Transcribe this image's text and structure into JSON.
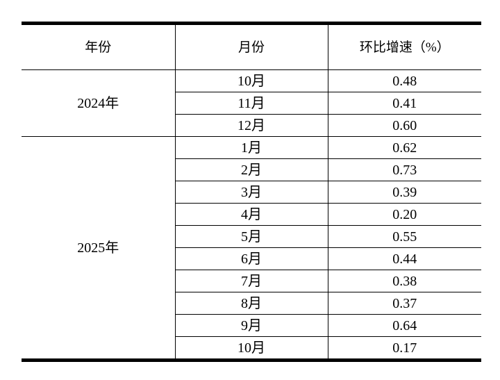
{
  "table": {
    "headers": {
      "year": "年份",
      "month": "月份",
      "growth": "环比增速（%）"
    },
    "groups": [
      {
        "year": "2024年",
        "rows": [
          {
            "month": "10月",
            "value": "0.48"
          },
          {
            "month": "11月",
            "value": "0.41"
          },
          {
            "month": "12月",
            "value": "0.60"
          }
        ]
      },
      {
        "year": "2025年",
        "rows": [
          {
            "month": "1月",
            "value": "0.62"
          },
          {
            "month": "2月",
            "value": "0.73"
          },
          {
            "month": "3月",
            "value": "0.39"
          },
          {
            "month": "4月",
            "value": "0.20"
          },
          {
            "month": "5月",
            "value": "0.55"
          },
          {
            "month": "6月",
            "value": "0.44"
          },
          {
            "month": "7月",
            "value": "0.38"
          },
          {
            "month": "8月",
            "value": "0.37"
          },
          {
            "month": "9月",
            "value": "0.64"
          },
          {
            "month": "10月",
            "value": "0.17"
          }
        ]
      }
    ],
    "colors": {
      "border": "#000000",
      "background": "#ffffff",
      "text": "#000000"
    }
  }
}
